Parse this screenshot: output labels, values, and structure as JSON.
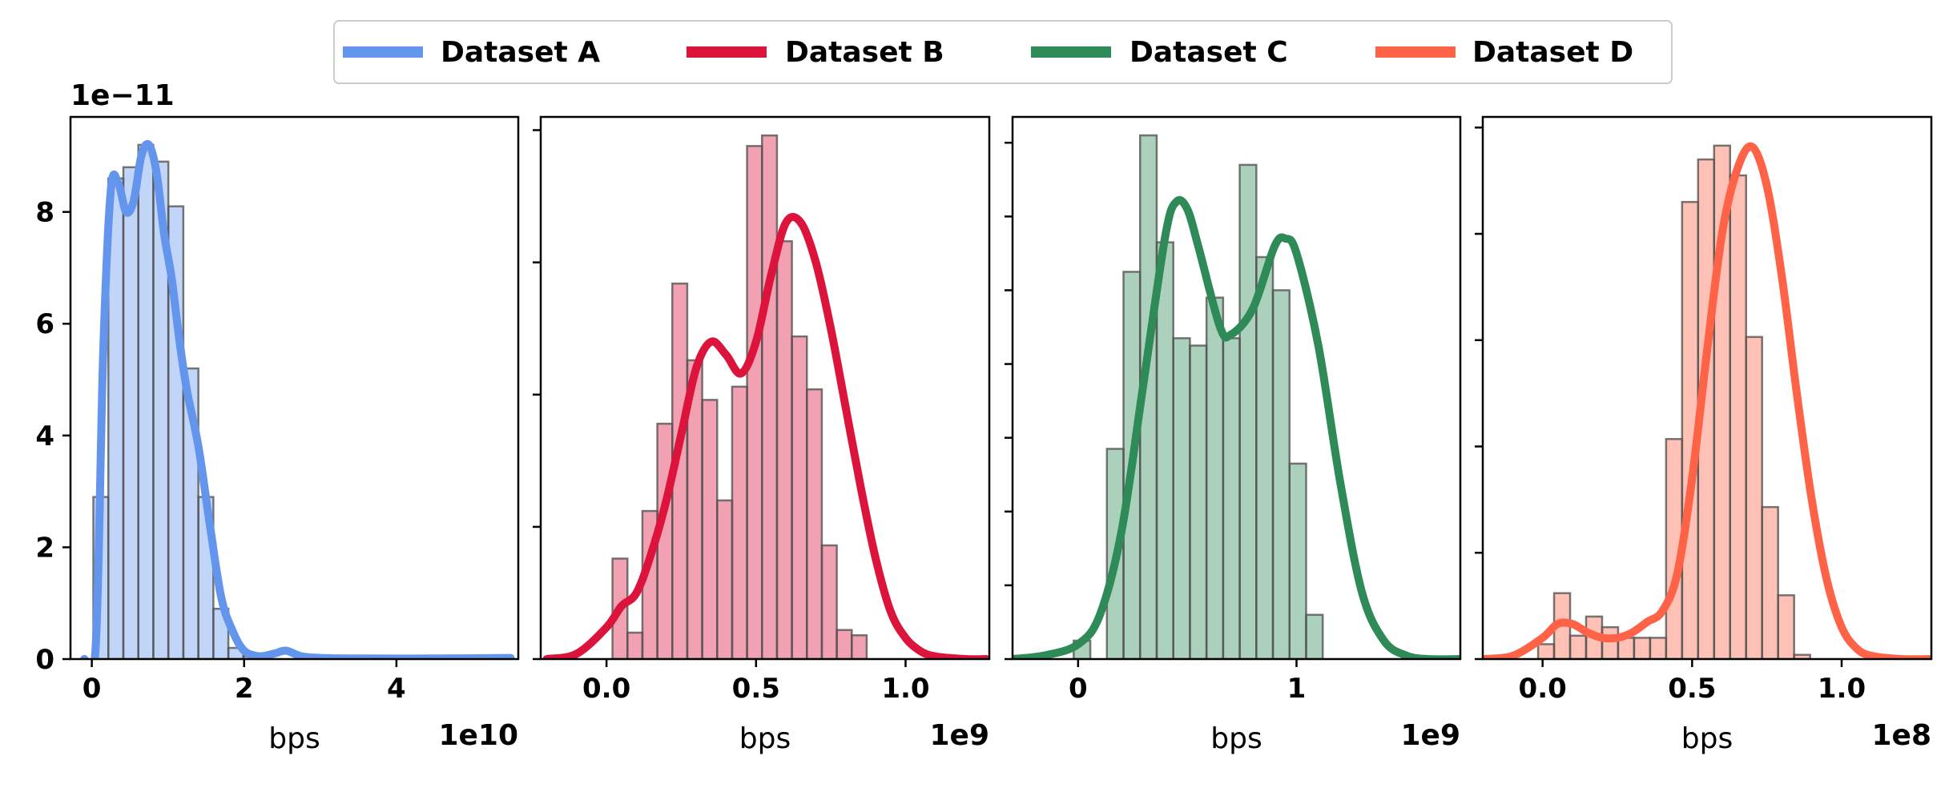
{
  "legend": {
    "placement": "top-center",
    "entries": [
      {
        "label": "Dataset A",
        "color": "#6495ED"
      },
      {
        "label": "Dataset B",
        "color": "#DC143C"
      },
      {
        "label": "Dataset C",
        "color": "#2E8B57"
      },
      {
        "label": "Dataset D",
        "color": "#FF6347"
      }
    ]
  },
  "chart_data": [
    {
      "type": "bar",
      "name": "Dataset A",
      "color": "#6495ED",
      "xlabel": "bps",
      "x_offset_label": "1e10",
      "y_offset_label": "1e−11",
      "xlim": [
        -0.28,
        5.6
      ],
      "ylim": [
        0,
        9.7
      ],
      "xticks": [
        0,
        2,
        4
      ],
      "xtick_labels": [
        "0",
        "2",
        "4"
      ],
      "yticks": [
        0,
        2,
        4,
        6,
        8
      ],
      "ytick_labels": [
        "0",
        "2",
        "4",
        "6",
        "8"
      ],
      "bins_start": 0.02,
      "bin_width": 0.197,
      "hist_values": [
        2.9,
        8.6,
        8.8,
        9.2,
        8.9,
        8.1,
        5.2,
        2.9,
        0.9,
        0.2,
        0.05
      ],
      "kde_x": [
        -0.1,
        0.05,
        0.15,
        0.25,
        0.35,
        0.45,
        0.55,
        0.65,
        0.75,
        0.85,
        0.95,
        1.05,
        1.15,
        1.25,
        1.4,
        1.55,
        1.7,
        1.85,
        2.0,
        2.2,
        2.4,
        2.55,
        2.75,
        3.0,
        3.5,
        4.5,
        5.5
      ],
      "kde_y": [
        0.0,
        0.2,
        5.5,
        8.4,
        8.5,
        8.0,
        8.2,
        9.0,
        9.2,
        8.7,
        7.6,
        6.8,
        5.7,
        4.8,
        3.8,
        2.4,
        1.1,
        0.5,
        0.15,
        0.05,
        0.1,
        0.15,
        0.05,
        0.02,
        0.01,
        0.01,
        0.02
      ]
    },
    {
      "type": "bar",
      "name": "Dataset B",
      "color": "#DC143C",
      "xlabel": "bps",
      "x_offset_label": "1e9",
      "xlim": [
        -0.22,
        1.28
      ],
      "ylim": [
        0,
        2.05
      ],
      "xticks": [
        0.0,
        0.5,
        1.0
      ],
      "xtick_labels": [
        "0.0",
        "0.5",
        "1.0"
      ],
      "yticks": [
        0,
        0.5,
        1.0,
        1.5,
        2.0
      ],
      "ytick_labels": [
        "",
        "",
        "",
        "",
        ""
      ],
      "bins_start": 0.02,
      "bin_width": 0.05,
      "hist_values": [
        0.38,
        0.1,
        0.56,
        0.89,
        1.42,
        1.13,
        0.98,
        0.6,
        1.03,
        1.94,
        1.98,
        1.58,
        1.22,
        1.02,
        0.43,
        0.11,
        0.09
      ],
      "kde_x": [
        -0.2,
        -0.1,
        0.0,
        0.05,
        0.1,
        0.15,
        0.2,
        0.25,
        0.3,
        0.35,
        0.4,
        0.45,
        0.5,
        0.55,
        0.6,
        0.65,
        0.7,
        0.75,
        0.8,
        0.85,
        0.9,
        0.95,
        1.0,
        1.05,
        1.1,
        1.2,
        1.27
      ],
      "kde_y": [
        0.0,
        0.02,
        0.12,
        0.2,
        0.25,
        0.4,
        0.6,
        0.85,
        1.1,
        1.2,
        1.15,
        1.08,
        1.2,
        1.45,
        1.65,
        1.65,
        1.5,
        1.25,
        0.95,
        0.65,
        0.38,
        0.18,
        0.08,
        0.03,
        0.01,
        0.0,
        0.0
      ]
    },
    {
      "type": "bar",
      "name": "Dataset C",
      "color": "#2E8B57",
      "xlabel": "bps",
      "x_offset_label": "1e9",
      "xlim": [
        -0.3,
        1.75
      ],
      "ylim": [
        0,
        1.47
      ],
      "xticks": [
        0,
        1
      ],
      "xtick_labels": [
        "0",
        "1"
      ],
      "yticks": [
        0,
        0.2,
        0.4,
        0.6,
        0.8,
        1.0,
        1.2,
        1.4
      ],
      "ytick_labels": [
        "",
        "",
        "",
        "",
        "",
        "",
        "",
        ""
      ],
      "bins_start": -0.02,
      "bin_width": 0.076,
      "hist_values": [
        0.05,
        0.0,
        0.57,
        1.05,
        1.42,
        1.13,
        0.87,
        0.85,
        0.98,
        0.87,
        1.34,
        1.09,
        1.0,
        0.53,
        0.12
      ],
      "kde_x": [
        -0.3,
        -0.15,
        0.0,
        0.1,
        0.2,
        0.3,
        0.4,
        0.45,
        0.5,
        0.55,
        0.65,
        0.7,
        0.8,
        0.9,
        0.95,
        1.0,
        1.1,
        1.2,
        1.3,
        1.4,
        1.5,
        1.6,
        1.75
      ],
      "kde_y": [
        0.0,
        0.01,
        0.04,
        0.12,
        0.35,
        0.75,
        1.15,
        1.24,
        1.22,
        1.12,
        0.9,
        0.88,
        0.95,
        1.12,
        1.14,
        1.1,
        0.85,
        0.48,
        0.18,
        0.05,
        0.01,
        0.0,
        0.0
      ]
    },
    {
      "type": "bar",
      "name": "Dataset D",
      "color": "#FF6347",
      "xlabel": "bps",
      "x_offset_label": "1e8",
      "xlim": [
        -0.2,
        1.3
      ],
      "ylim": [
        0,
        5.1
      ],
      "xticks": [
        0.0,
        0.5,
        1.0
      ],
      "xtick_labels": [
        "0.0",
        "0.5",
        "1.0"
      ],
      "yticks": [
        0,
        1,
        2,
        3,
        4,
        5
      ],
      "ytick_labels": [
        "",
        "",
        "",
        "",
        "",
        ""
      ],
      "bins_start": -0.015,
      "bin_width": 0.0535,
      "hist_values": [
        0.14,
        0.62,
        0.22,
        0.4,
        0.3,
        0.2,
        0.2,
        0.2,
        2.07,
        4.3,
        4.7,
        4.83,
        4.55,
        3.03,
        1.43,
        0.6,
        0.04
      ],
      "kde_x": [
        -0.2,
        -0.1,
        0.0,
        0.05,
        0.1,
        0.15,
        0.2,
        0.25,
        0.3,
        0.35,
        0.4,
        0.45,
        0.5,
        0.55,
        0.6,
        0.65,
        0.7,
        0.75,
        0.8,
        0.85,
        0.9,
        0.95,
        1.0,
        1.05,
        1.1,
        1.2,
        1.3
      ],
      "kde_y": [
        0.0,
        0.03,
        0.2,
        0.33,
        0.33,
        0.25,
        0.2,
        0.2,
        0.25,
        0.35,
        0.45,
        0.8,
        1.7,
        2.9,
        4.0,
        4.6,
        4.82,
        4.45,
        3.6,
        2.5,
        1.5,
        0.75,
        0.3,
        0.1,
        0.03,
        0.0,
        0.0
      ]
    }
  ]
}
